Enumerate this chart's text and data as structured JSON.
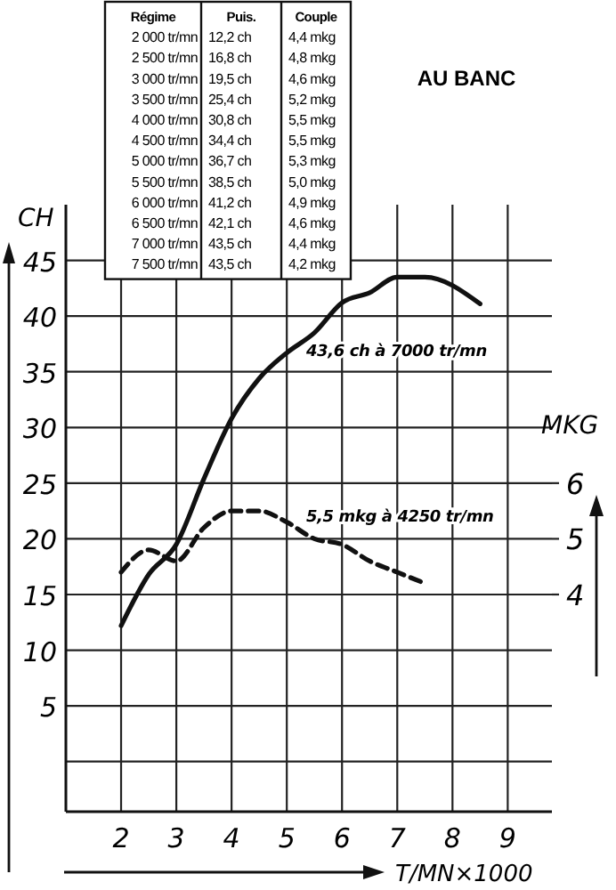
{
  "chart_data": {
    "type": "line",
    "title": "AU BANC",
    "xlabel": "T/MN×1000",
    "ylabel": "CH",
    "y2label": "MKG",
    "xlim": [
      1,
      9.8
    ],
    "xticks": [
      2,
      3,
      4,
      5,
      6,
      7,
      8,
      9
    ],
    "ylim": [
      -4.5,
      50
    ],
    "yticks": [
      {
        "value": 0,
        "label": null
      },
      5,
      10,
      15,
      20,
      25,
      30,
      35,
      40,
      45
    ],
    "y2lim": [
      0.1,
      11
    ],
    "y2ticks": [
      4,
      5,
      6
    ],
    "grid": true,
    "marker": "none",
    "series": [
      {
        "color": "#111111",
        "line_style": "solid",
        "x": [
          2,
          2.5,
          3,
          3.5,
          4,
          4.5,
          5,
          5.5,
          6,
          6.5,
          7,
          7.5,
          8.5
        ],
        "values": [
          12.2,
          16.8,
          19.5,
          25.4,
          30.8,
          34.4,
          36.7,
          38.5,
          41.2,
          42.1,
          43.5,
          43.5,
          41.1
        ]
      },
      {
        "color": "#111111",
        "line_style": "dashed",
        "axis": "y2",
        "x": [
          2,
          2.5,
          3,
          3.5,
          4,
          4.5,
          5,
          5.5,
          6,
          6.5,
          7,
          7.5
        ],
        "values": [
          4.4,
          4.8,
          4.6,
          5.2,
          5.5,
          5.5,
          5.3,
          5.0,
          4.9,
          4.6,
          4.4,
          4.2
        ]
      }
    ],
    "annotations": [
      "Régime",
      "Puis.",
      "Couple",
      "2 000 tr/mn",
      "12,2 ch",
      "4,4 mkg",
      "2 500 tr/mn",
      "16,8 ch",
      "4,8 mkg",
      "3 000 tr/mn",
      "19,5 ch",
      "4,6 mkg",
      "3 500 tr/mn",
      "25,4 ch",
      "5,2 mkg",
      "4 000 tr/mn",
      "30,8 ch",
      "5,5 mkg",
      "4 500 tr/mn",
      "34,4 ch",
      "5,5 mkg",
      "5 000 tr/mn",
      "36,7 ch",
      "5,3 mkg",
      "5 500 tr/mn",
      "38,5 ch",
      "5,0 mkg",
      "6 000 tr/mn",
      "41,2 ch",
      "4,9 mkg",
      "6 500 tr/mn",
      "42,1 ch",
      "4,6 mkg",
      "7 000 tr/mn",
      "43,5 ch",
      "4,4 mkg",
      "7 500 tr/mn",
      "43,5 ch",
      "4,2 mkg",
      "43,6 ch à 7000 tr/mn",
      "5,5 mkg à 4250 tr/mn"
    ]
  }
}
